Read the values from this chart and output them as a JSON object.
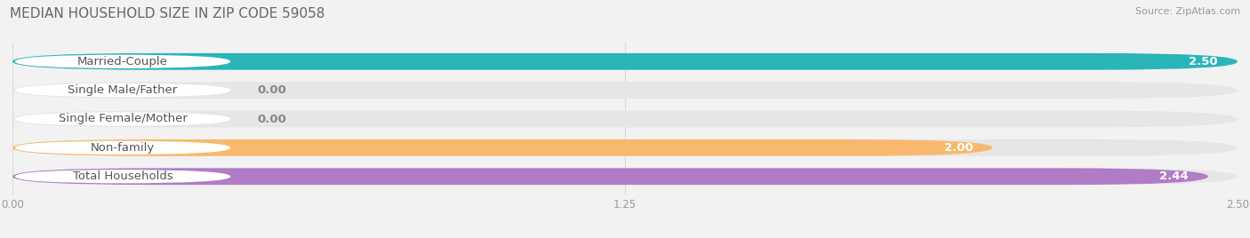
{
  "title": "MEDIAN HOUSEHOLD SIZE IN ZIP CODE 59058",
  "source": "Source: ZipAtlas.com",
  "categories": [
    "Married-Couple",
    "Single Male/Father",
    "Single Female/Mother",
    "Non-family",
    "Total Households"
  ],
  "values": [
    2.5,
    0.0,
    0.0,
    2.0,
    2.44
  ],
  "bar_colors": [
    "#29b5b8",
    "#8aaad4",
    "#f4a0b5",
    "#f8b96e",
    "#b07cc6"
  ],
  "value_text_colors": [
    "#ffffff",
    "#777777",
    "#777777",
    "#ffffff",
    "#ffffff"
  ],
  "xlim_max": 2.5,
  "xticks": [
    0.0,
    1.25,
    2.5
  ],
  "xtick_labels": [
    "0.00",
    "1.25",
    "2.50"
  ],
  "bg_color": "#f2f2f2",
  "bar_bg_color": "#e6e6e6",
  "title_fontsize": 11,
  "source_fontsize": 8,
  "label_fontsize": 9.5,
  "value_fontsize": 9.5,
  "bar_height": 0.58,
  "bar_gap": 0.42,
  "figsize": [
    14.06,
    2.68
  ],
  "label_box_color": "#ffffff",
  "label_text_color": "#555555",
  "grid_color": "#d8d8d8"
}
